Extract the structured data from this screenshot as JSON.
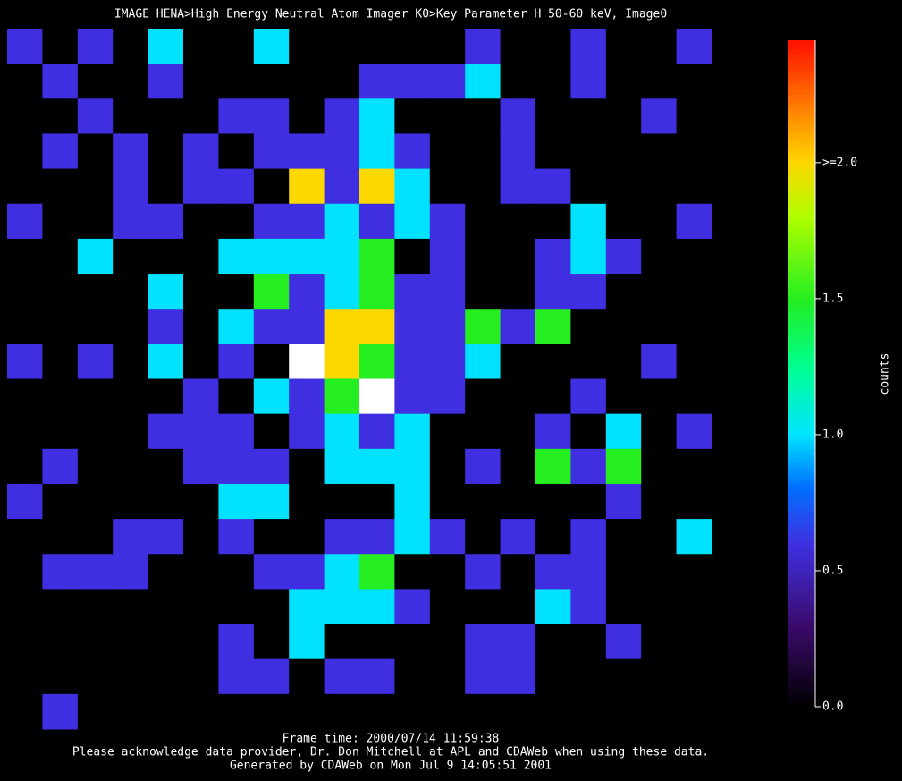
{
  "chart_data": {
    "type": "heatmap",
    "title": "IMAGE  HENA>High Energy Neutral Atom Imager  K0>Key Parameter H 50-60 keV, Image0",
    "z": [
      [
        0.6,
        0,
        0.6,
        0,
        1,
        0,
        0,
        1,
        0,
        0,
        0,
        0,
        0,
        0.6,
        0,
        0,
        0.6,
        0,
        0,
        0.6,
        0,
        0
      ],
      [
        0,
        0.6,
        0,
        0,
        0.6,
        0,
        0,
        0,
        0,
        0,
        0.6,
        0.6,
        0.6,
        1,
        0,
        0,
        0.6,
        0,
        0,
        0,
        0,
        0
      ],
      [
        0,
        0,
        0.6,
        0,
        0,
        0,
        0.6,
        0.6,
        0,
        0.6,
        1,
        0,
        0,
        0,
        0.6,
        0,
        0,
        0,
        0.6,
        0,
        0,
        0
      ],
      [
        0,
        0.6,
        0,
        0.6,
        0,
        0.6,
        0,
        0.6,
        0.6,
        0.6,
        1,
        0.6,
        0,
        0,
        0.6,
        0,
        0,
        0,
        0,
        0,
        0,
        0
      ],
      [
        0,
        0,
        0,
        0.6,
        0,
        0.6,
        0.6,
        0,
        2,
        0.6,
        2,
        1,
        0,
        0,
        0.6,
        0.6,
        0,
        0,
        0,
        0,
        0,
        0
      ],
      [
        0.6,
        0,
        0,
        0.6,
        0.6,
        0,
        0,
        0.6,
        0.6,
        1,
        0.6,
        1,
        0.6,
        0,
        0,
        0,
        1,
        0,
        0,
        0.6,
        0,
        0
      ],
      [
        0,
        0,
        1,
        0,
        0,
        0,
        1,
        1,
        1,
        1,
        1.5,
        0,
        0.6,
        0,
        0,
        0.6,
        1,
        0.6,
        0,
        0,
        0,
        0
      ],
      [
        0,
        0,
        0,
        0,
        1,
        0,
        0,
        1.5,
        0.6,
        1,
        1.5,
        0.6,
        0.6,
        0,
        0,
        0.6,
        0.6,
        0,
        0,
        0,
        0,
        0
      ],
      [
        0,
        0,
        0,
        0,
        0.6,
        0,
        1,
        0.6,
        0.6,
        2,
        2,
        0.6,
        0.6,
        1.5,
        0.6,
        1.5,
        0,
        0,
        0,
        0,
        0,
        0
      ],
      [
        0.6,
        0,
        0.6,
        0,
        1,
        0,
        0.6,
        0,
        3,
        2,
        1.5,
        0.6,
        0.6,
        1,
        0,
        0,
        0,
        0,
        0.6,
        0,
        0,
        0
      ],
      [
        0,
        0,
        0,
        0,
        0,
        0.6,
        0,
        1,
        0.6,
        1.5,
        3,
        0.6,
        0.6,
        0,
        0,
        0,
        0.6,
        0,
        0,
        0,
        0,
        0
      ],
      [
        0,
        0,
        0,
        0,
        0.6,
        0.6,
        0.6,
        0,
        0.6,
        1,
        0.6,
        1,
        0,
        0,
        0,
        0.6,
        0,
        1,
        0,
        0.6,
        0,
        0
      ],
      [
        0,
        0.6,
        0,
        0,
        0,
        0.6,
        0.6,
        0.6,
        0,
        1,
        1,
        1,
        0,
        0.6,
        0,
        1.5,
        0.6,
        1.5,
        0,
        0,
        0,
        0
      ],
      [
        0.6,
        0,
        0,
        0,
        0,
        0,
        1,
        1,
        0,
        0,
        0,
        1,
        0,
        0,
        0,
        0,
        0,
        0.6,
        0,
        0,
        0,
        0
      ],
      [
        0,
        0,
        0,
        0.6,
        0.6,
        0,
        0.6,
        0,
        0,
        0.6,
        0.6,
        1,
        0.6,
        0,
        0.6,
        0,
        0.6,
        0,
        0,
        1,
        0,
        0
      ],
      [
        0,
        0.6,
        0.6,
        0.6,
        0,
        0,
        0,
        0.6,
        0.6,
        1,
        1.5,
        0,
        0,
        0.6,
        0,
        0.6,
        0.6,
        0,
        0,
        0,
        0,
        0
      ],
      [
        0,
        0,
        0,
        0,
        0,
        0,
        0,
        0,
        1,
        1,
        1,
        0.6,
        0,
        0,
        0,
        1,
        0.6,
        0,
        0,
        0,
        0,
        0
      ],
      [
        0,
        0,
        0,
        0,
        0,
        0,
        0.6,
        0,
        1,
        0,
        0,
        0,
        0,
        0.6,
        0.6,
        0,
        0,
        0.6,
        0,
        0,
        0,
        0
      ],
      [
        0,
        0,
        0,
        0,
        0,
        0,
        0.6,
        0.6,
        0,
        0.6,
        0.6,
        0,
        0,
        0.6,
        0.6,
        0,
        0,
        0,
        0,
        0,
        0,
        0
      ],
      [
        0,
        0.6,
        0,
        0,
        0,
        0,
        0,
        0,
        0,
        0,
        0,
        0,
        0,
        0,
        0,
        0,
        0,
        0,
        0,
        0,
        0,
        0
      ]
    ],
    "colorbar_label": "counts",
    "zlim": [
      0,
      2.45
    ],
    "zticks": [
      {
        "value": 0,
        "label": "0.0"
      },
      {
        "value": 0.5,
        "label": "0.5"
      },
      {
        "value": 1,
        "label": "1.0"
      },
      {
        "value": 1.5,
        "label": "1.5"
      },
      {
        "value": 2,
        "label": ">=2.0"
      }
    ],
    "footer": [
      "Frame time: 2000/07/14 11:59:38",
      "Please acknowledge data provider, Dr. Don Mitchell at APL and CDAWeb when using these data.",
      "Generated by CDAWeb on Mon Jul  9 14:05:51 2001"
    ]
  }
}
